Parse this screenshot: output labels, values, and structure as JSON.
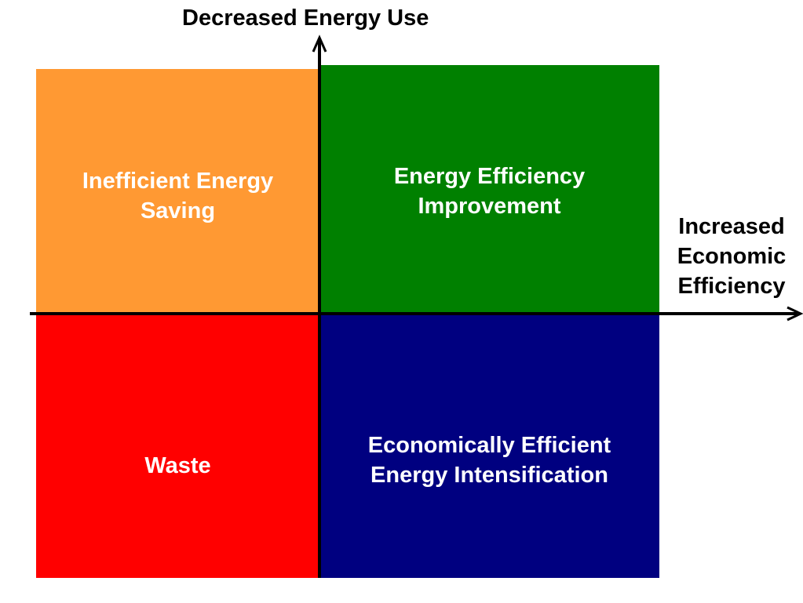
{
  "diagram": {
    "y_axis_label": "Decreased Energy Use",
    "x_axis_label": "Increased\nEconomic\nEfficiency",
    "quadrants": {
      "top_left": {
        "label": "Inefficient Energy\nSaving",
        "color": "#FF9933"
      },
      "top_right": {
        "label": "Energy Efficiency\nImprovement",
        "color": "#008000"
      },
      "bottom_left": {
        "label": "Waste",
        "color": "#FF0000"
      },
      "bottom_right": {
        "label": "Economically Efficient\nEnergy Intensification",
        "color": "#000080"
      }
    },
    "axis_color": "#000000"
  }
}
